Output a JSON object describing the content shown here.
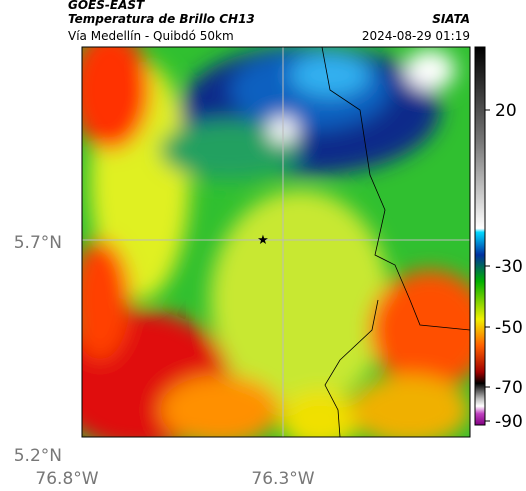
{
  "header": {
    "source": "GOES-EAST",
    "product": "Temperatura de Brillo CH13",
    "route": "Vía Medellín - Quibdó 50km",
    "agency": "SIATA",
    "datetime": "2024-08-29 01:19"
  },
  "axes": {
    "lat_labels": [
      "5.7°N",
      "5.2°N"
    ],
    "lon_labels": [
      "76.8°W",
      "76.3°W"
    ]
  },
  "colorbar": {
    "ticks": [
      20,
      -30,
      -50,
      -70,
      -90
    ]
  }
}
